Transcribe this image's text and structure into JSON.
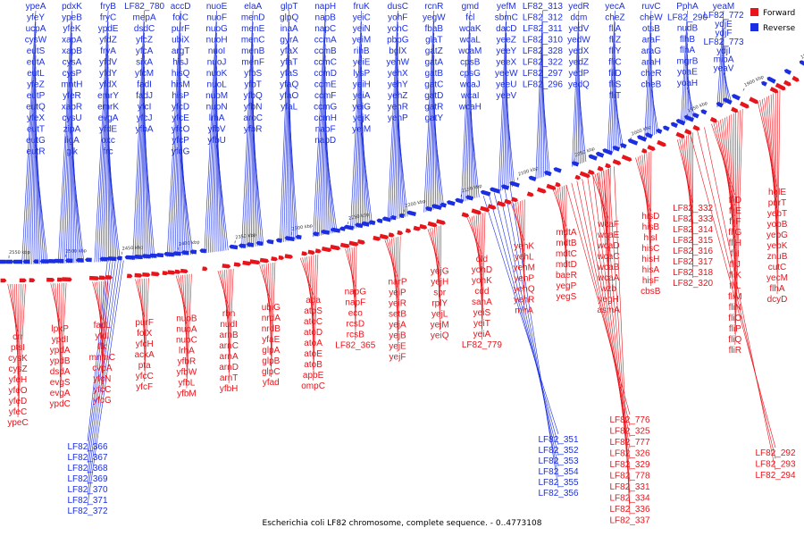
{
  "caption": "Escherichia coli LF82 chromosome, complete sequence. - 0..4773108",
  "legend": {
    "forward_label": "Forward",
    "reverse_label": "Reverse"
  },
  "colors": {
    "forward": "#e8141b",
    "reverse": "#1c2fe0",
    "backbone": "#2a2a2a"
  },
  "scale_ticks": [
    "2550 kbp",
    "2500 kbp",
    "2450 kbp",
    "2400 kbp",
    "2350 kbp",
    "2300 kbp",
    "2250 kbp",
    "2200 kbp",
    "2150 kbp",
    "2100 kbp",
    "2050 kbp",
    "2000 kbp",
    "1950 kbp",
    "1900 kbp",
    "1850 kbp"
  ],
  "reverse_genes": [
    [
      "ypeA",
      "yfeY",
      "ucpA",
      "cysW",
      "eutS",
      "eutA",
      "eutL",
      "yfeZ",
      "eutP",
      "eutQ",
      "yfeX",
      "eutT",
      "eutG",
      "eutR"
    ],
    [
      "pdxK",
      "ypeB",
      "yfeK",
      "xapA",
      "xapB",
      "cysA",
      "cysP",
      "mntH",
      "yfeR",
      "xapR",
      "cysU",
      "zipA",
      "ligA",
      "glk"
    ],
    [
      "fryB",
      "fryC",
      "ypdE",
      "yfdZ",
      "fryA",
      "yfdV",
      "yfdY",
      "yfdX",
      "emrY",
      "emrK",
      "evgA",
      "yfdE",
      "oxc",
      "frc"
    ],
    [
      "LF82_780",
      "mepA",
      "dsdC",
      "yfcZ",
      "yfcA",
      "sixA",
      "yfcM",
      "fadI",
      "fadJ",
      "yfcI",
      "yfcJ",
      "yfbA"
    ],
    [
      "accD",
      "folC",
      "purF",
      "ubiX",
      "argT",
      "hisJ",
      "hisQ",
      "hisM",
      "hisP",
      "yfcD",
      "yfcE",
      "yfcO",
      "yfcP",
      "yfcG"
    ],
    [
      "nuoE",
      "nuoF",
      "nuoG",
      "nuoH",
      "nuoI",
      "nuoJ",
      "nuoK",
      "nuoL",
      "nuoM",
      "nuoN",
      "lrhA",
      "yfbV",
      "yfbU"
    ],
    [
      "elaA",
      "menD",
      "menE",
      "menC",
      "menB",
      "menF",
      "yfbS",
      "yfbT",
      "yfbQ",
      "yfbN",
      "aroC",
      "yfbR"
    ],
    [
      "glpT",
      "glpQ",
      "inaA",
      "gyrA",
      "yfaX",
      "yfaT",
      "yfaS",
      "yfaQ",
      "yfaO",
      "yfaL"
    ],
    [
      "napH",
      "napB",
      "napC",
      "ccmA",
      "ccmB",
      "ccmC",
      "ccmD",
      "ccmE",
      "ccmF",
      "ccmG",
      "ccmH",
      "napF",
      "napD"
    ],
    [
      "fruK",
      "yeiC",
      "yeiN",
      "yeiM",
      "rihB",
      "yeiE",
      "lysP",
      "yeiH",
      "yeiA",
      "yeiG",
      "yejK",
      "yejM"
    ],
    [
      "dusC",
      "yohF",
      "yohC",
      "pbpG",
      "bglX",
      "yehW",
      "yehX",
      "yehY",
      "yehZ",
      "yehR",
      "yehP"
    ],
    [
      "rcnR",
      "yegW",
      "fbaB",
      "glaT",
      "gatZ",
      "gatA",
      "gatB",
      "gatC",
      "gatD",
      "gatR",
      "gatY"
    ],
    [
      "gmd",
      "fcl",
      "wcaK",
      "wcaL",
      "wcaM",
      "cpsB",
      "cpsG",
      "wcaJ",
      "wcaI",
      "wcaH"
    ],
    [
      "yefM",
      "sbmC",
      "dacD",
      "yeeZ",
      "yeeY",
      "yeeX",
      "yeeW",
      "yeeU",
      "yeeV"
    ],
    [
      "LF82_313",
      "LF82_312",
      "LF82_311",
      "LF82_310",
      "LF82_328",
      "LF82_322",
      "LF82_297",
      "LF82_296"
    ],
    [
      "yedR",
      "dcm",
      "yedV",
      "yedW",
      "yedX",
      "yedZ",
      "yedP",
      "yedQ"
    ],
    [
      "yecA",
      "cheZ",
      "fliA",
      "fliZ",
      "fliY",
      "fliC",
      "fliD",
      "fliS",
      "fliT"
    ],
    [
      "ruvC",
      "cheW",
      "otsB",
      "araF",
      "araG",
      "araH",
      "cheR",
      "cheB"
    ],
    [
      "PphA",
      "LF82_290",
      "nudB",
      "flhB",
      "flhA",
      "mgrB",
      "yoaE",
      "yoaH"
    ],
    [
      "yeaM",
      "LF82_772",
      "ydjE",
      "ydjF",
      "LF82_773",
      "ydjI",
      "mipA",
      "yeaV"
    ]
  ],
  "forward_genes": [
    [
      "crr",
      "ptsI",
      "cysK",
      "cysZ",
      "yfeH",
      "yfeO",
      "yfeD",
      "yfeC",
      "ypeC"
    ],
    [
      "lpxP",
      "ypdI",
      "ypdA",
      "ypdB",
      "dsdA",
      "evgS",
      "evgA",
      "ypdC"
    ],
    [
      "fadL",
      "yfdI",
      "flk",
      "mnmC",
      "cvpA",
      "yfcN",
      "yfcC",
      "yfcG"
    ],
    [
      "purF",
      "folX",
      "yfcH",
      "ackA",
      "pta",
      "yfcC",
      "yfcF"
    ],
    [
      "nuoB",
      "nuoA",
      "nuoC",
      "lrhA",
      "yfbR",
      "yfbW",
      "yfbL",
      "yfbM"
    ],
    [
      "rbn",
      "nudI",
      "arnB",
      "arnC",
      "arnA",
      "arnD",
      "arnT",
      "yfbH"
    ],
    [
      "ubiG",
      "nrdA",
      "nrdB",
      "yfaE",
      "glpA",
      "glpB",
      "glpC",
      "yfad"
    ],
    [
      "ada",
      "atoS",
      "atoC",
      "atoD",
      "atoA",
      "atoE",
      "atoB",
      "apbE",
      "ompC"
    ],
    [
      "napG",
      "napF",
      "eco",
      "rcsD",
      "rcsB",
      "LF82_365"
    ],
    [
      "narP",
      "yeiP",
      "yeiR",
      "setB",
      "yejA",
      "yejB",
      "yejE",
      "yejF"
    ],
    [
      "yejG",
      "yejH",
      "spr",
      "rplY",
      "yejL",
      "yejM",
      "yeiQ"
    ],
    [
      "dld",
      "yohD",
      "yohK",
      "cdd",
      "sanA",
      "yeiS",
      "yeiT",
      "yeiA",
      "LF82_779"
    ],
    [
      "yehK",
      "yehL",
      "yehM",
      "yehP",
      "yehQ",
      "yehR",
      "mlrA"
    ],
    [
      "mdtA",
      "mdtB",
      "mdtC",
      "mdtD",
      "baeR",
      "yegP",
      "yegS"
    ],
    [
      "wcaF",
      "wcaE",
      "wcaD",
      "wcaC",
      "wcaB",
      "wcaA",
      "wzb",
      "yegH",
      "asmA"
    ],
    [
      "hisD",
      "hisB",
      "hisI",
      "hisC",
      "hisH",
      "hisA",
      "hisF",
      "cbsB"
    ],
    [
      "LF82_332",
      "LF82_333",
      "LF82_314",
      "LF82_315",
      "LF82_316",
      "LF82_317",
      "LF82_318",
      "LF82_320"
    ],
    [
      "fliD",
      "fliE",
      "fliF",
      "fliG",
      "fliH",
      "fliI",
      "fliJ",
      "fliK",
      "fliL",
      "fliM",
      "fliN",
      "fliO",
      "fliP",
      "fliQ",
      "fliR"
    ],
    [
      "holE",
      "purT",
      "yebT",
      "yobB",
      "yebG",
      "yebK",
      "znuB",
      "cutC",
      "yecM",
      "flhA",
      "dcyD"
    ]
  ],
  "reverse_bottom_labels": [
    "LF82_366",
    "LF82_367",
    "LF82_368",
    "LF82_369",
    "LF82_370",
    "LF82_371",
    "LF82_372",
    "LF82_351",
    "LF82_352",
    "LF82_353",
    "LF82_354",
    "LF82_355",
    "LF82_356"
  ],
  "forward_bottom_labels": [
    "LF82_776",
    "LF82_325",
    "LF82_777",
    "LF82_326",
    "LF82_329",
    "LF82_778",
    "LF82_331",
    "LF82_334",
    "LF82_336",
    "LF82_337",
    "LF82_292",
    "LF82_293",
    "LF82_294"
  ]
}
